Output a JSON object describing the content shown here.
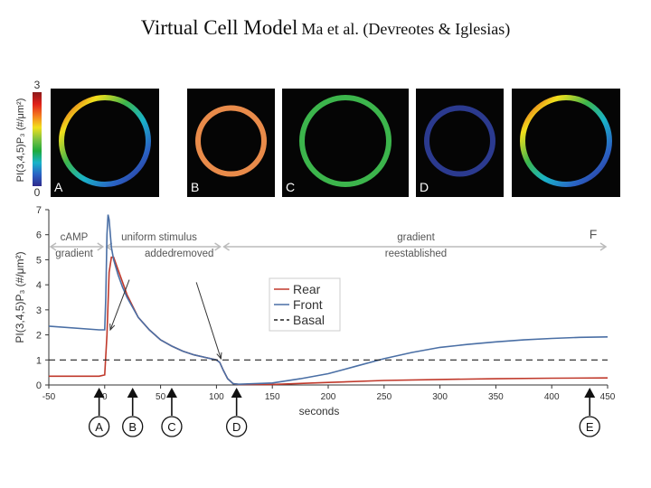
{
  "slide": {
    "title_main": "Virtual Cell Model",
    "title_sub": "Ma et al. (Devreotes & Iglesias)"
  },
  "colorbar": {
    "label": "PI(3,4,5)P₃ (#/μm²)",
    "max_label": "3",
    "min_label": "0",
    "colors": [
      "#8b1a1a",
      "#e0201a",
      "#f47b20",
      "#f2e01c",
      "#7fc241",
      "#1eaa3c",
      "#19b3c9",
      "#2a62c4",
      "#2e2a8c"
    ]
  },
  "panels": [
    {
      "letter": "A",
      "style": "gradient"
    },
    {
      "letter": "B",
      "color": "#e98b4a"
    },
    {
      "letter": "C",
      "color": "#3cb54c"
    },
    {
      "letter": "D",
      "color": "#2b3a8f"
    },
    {
      "letter": "",
      "style": "gradient"
    }
  ],
  "chart_data": {
    "type": "line",
    "xlabel": "seconds",
    "ylabel": "PI(3,4,5)P₃ (#/μm²)",
    "xlim": [
      -50,
      450
    ],
    "ylim": [
      0,
      7
    ],
    "xticks": [
      -50,
      0,
      50,
      100,
      150,
      200,
      250,
      300,
      350,
      400,
      450
    ],
    "yticks": [
      0,
      1,
      2,
      3,
      4,
      5,
      6,
      7
    ],
    "series": [
      {
        "name": "Rear",
        "color": "#c0392b",
        "x": [
          -50,
          -5,
          0,
          2,
          4,
          6,
          8,
          12,
          16,
          20,
          30,
          40,
          50,
          60,
          70,
          80,
          90,
          100,
          103,
          106,
          110,
          115,
          120,
          150,
          200,
          250,
          300,
          350,
          400,
          450
        ],
        "y": [
          0.35,
          0.35,
          0.4,
          2.0,
          4.5,
          5.1,
          5.1,
          4.6,
          4.1,
          3.6,
          2.7,
          2.2,
          1.8,
          1.55,
          1.35,
          1.2,
          1.1,
          1.0,
          0.9,
          0.6,
          0.25,
          0.05,
          0.02,
          0.02,
          0.1,
          0.18,
          0.22,
          0.25,
          0.27,
          0.28
        ]
      },
      {
        "name": "Front",
        "color": "#4a6fa5",
        "x": [
          -50,
          -5,
          0,
          1,
          2,
          3,
          4,
          6,
          8,
          12,
          16,
          20,
          30,
          40,
          50,
          60,
          70,
          80,
          90,
          100,
          103,
          106,
          110,
          115,
          120,
          150,
          175,
          200,
          225,
          250,
          275,
          300,
          325,
          350,
          375,
          400,
          425,
          450
        ],
        "y": [
          2.35,
          2.2,
          2.2,
          3.5,
          6.0,
          6.8,
          6.6,
          5.5,
          5.0,
          4.4,
          3.9,
          3.5,
          2.7,
          2.2,
          1.8,
          1.55,
          1.35,
          1.2,
          1.1,
          1.0,
          0.9,
          0.6,
          0.25,
          0.05,
          0.03,
          0.08,
          0.25,
          0.45,
          0.75,
          1.05,
          1.3,
          1.5,
          1.62,
          1.72,
          1.8,
          1.86,
          1.9,
          1.92
        ]
      },
      {
        "name": "Basal",
        "color": "#222222",
        "dashed": true,
        "x": [
          -50,
          450
        ],
        "y": [
          1,
          1
        ]
      }
    ],
    "phases": [
      {
        "lines": [
          "cAMP",
          "gradient"
        ],
        "from": -50,
        "to": 0
      },
      {
        "lines": [
          "uniform stimulus",
          "added"
        ],
        "from": 0,
        "to": 105
      },
      {
        "lines": [
          "",
          "removed"
        ],
        "from": 0,
        "to": 105
      },
      {
        "lines": [
          "gradient",
          "reestablished"
        ],
        "from": 105,
        "to": 450
      }
    ],
    "panel_F_label": "F",
    "markers": [
      {
        "label": "A",
        "x": -5
      },
      {
        "label": "B",
        "x": 25
      },
      {
        "label": "C",
        "x": 60
      },
      {
        "label": "D",
        "x": 118
      },
      {
        "label": "E",
        "x": 434
      }
    ],
    "callout_arrows": [
      {
        "from_x": 22,
        "from_y": 4.2,
        "to_x": 5,
        "to_y": 2.2
      },
      {
        "from_x": 82,
        "from_y": 4.1,
        "to_x": 104,
        "to_y": 1.05
      }
    ]
  }
}
